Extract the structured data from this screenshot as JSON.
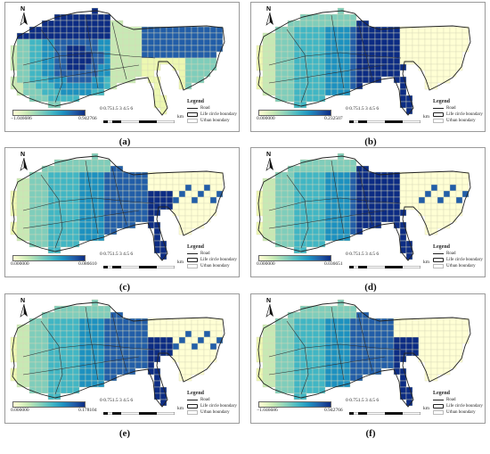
{
  "panels": [
    {
      "id": "a",
      "caption": "(a)",
      "min_label": "−1.046686",
      "max_label": "0.942766",
      "pattern": "a"
    },
    {
      "id": "b",
      "caption": "(b)",
      "min_label": "0.000000",
      "max_label": "0.232507",
      "pattern": "b"
    },
    {
      "id": "c",
      "caption": "(c)",
      "min_label": "0.000000",
      "max_label": "0.086610",
      "pattern": "c"
    },
    {
      "id": "d",
      "caption": "(d)",
      "min_label": "0.000000",
      "max_label": "0.036651",
      "pattern": "d"
    },
    {
      "id": "e",
      "caption": "(e)",
      "min_label": "0.000000",
      "max_label": "0.178104",
      "pattern": "e"
    },
    {
      "id": "f",
      "caption": "(f)",
      "min_label": "−1.046686",
      "max_label": "0.942766",
      "pattern": "f"
    }
  ],
  "north_label": "N",
  "scale_labels": "0 0.751.5      3      4.5     6",
  "scale_unit": "km",
  "legend": {
    "title": "Legend",
    "road": "Road",
    "life_circle": "Life circle boundary",
    "urban": "Urban boundary"
  },
  "colors": [
    "#ffffd4",
    "#edf8b1",
    "#c7e9b4",
    "#7fcdbb",
    "#41b6c4",
    "#1d91c0",
    "#225ea8",
    "#0c2c84"
  ]
}
